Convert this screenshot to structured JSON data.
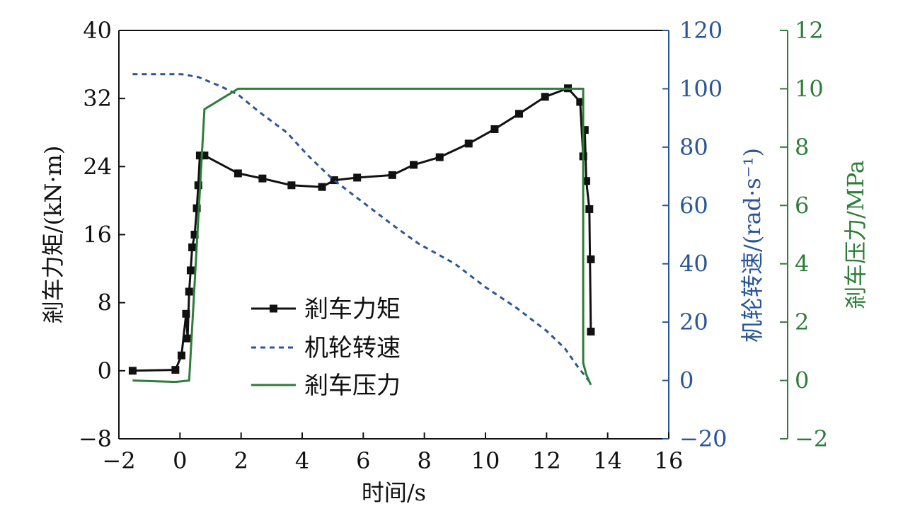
{
  "chart_data": {
    "type": "line",
    "xlabel": "时间/s",
    "xlim": [
      -2,
      16
    ],
    "xticks": [
      -2,
      0,
      2,
      4,
      6,
      8,
      10,
      12,
      14,
      16
    ],
    "axes": {
      "left": {
        "label": "剎车力矩/(kN·m)",
        "ylim": [
          -8,
          40
        ],
        "ticks": [
          -8,
          0,
          8,
          16,
          24,
          32,
          40
        ],
        "color": "#111111"
      },
      "right1": {
        "label": "机轮转速/(rad·s⁻¹)",
        "ylim": [
          -20,
          120
        ],
        "ticks": [
          -20,
          0,
          20,
          40,
          60,
          80,
          100,
          120
        ],
        "color": "#2a5699"
      },
      "right2": {
        "label": "剎车压力/MPa",
        "ylim": [
          -2,
          12
        ],
        "ticks": [
          -2,
          0,
          2,
          4,
          6,
          8,
          10,
          12
        ],
        "color": "#2e7d3a"
      }
    },
    "legend": {
      "placement": "center-left",
      "entries": [
        "剎车力矩",
        "机轮转速",
        "剎车压力"
      ]
    },
    "series": [
      {
        "name": "剎车力矩",
        "axis": "left",
        "style": "solid-square-markers",
        "color": "#111111",
        "x": [
          -1.55,
          -0.15,
          0.05,
          0.2,
          0.25,
          0.3,
          0.35,
          0.4,
          0.48,
          0.55,
          0.6,
          0.65,
          0.8,
          1.9,
          2.7,
          3.65,
          4.65,
          5.05,
          5.8,
          6.95,
          7.65,
          8.5,
          9.45,
          10.3,
          11.1,
          11.95,
          12.7,
          13.1,
          13.2,
          13.25,
          13.3,
          13.4,
          13.45
        ],
        "y": [
          0,
          0.1,
          1.8,
          6.7,
          3.8,
          9.3,
          11.8,
          14.5,
          16,
          19.1,
          21.8,
          25.3,
          25.3,
          23.2,
          22.6,
          21.8,
          21.6,
          22.4,
          22.7,
          23,
          24.2,
          25.1,
          26.7,
          28.4,
          30.2,
          32.2,
          33.2,
          31.6,
          25.2,
          28.3,
          22.3,
          19,
          4.6
        ],
        "extra_points": [
          {
            "x": 13.45,
            "y": 13.1
          }
        ]
      },
      {
        "name": "机轮转速",
        "axis": "right1",
        "style": "dashed",
        "color": "#2a5699",
        "x": [
          -1.55,
          0.05,
          0.6,
          1.3,
          1.9,
          2.6,
          3.5,
          4.2,
          5,
          6,
          7,
          7.8,
          9,
          10,
          11,
          12,
          12.6,
          13,
          13.3,
          13.45
        ],
        "y": [
          105,
          105,
          104,
          101,
          98,
          92,
          85,
          77,
          69,
          61,
          53,
          47,
          40,
          32,
          25,
          17,
          11,
          5,
          1,
          -1
        ]
      },
      {
        "name": "剎车压力",
        "axis": "right2",
        "style": "solid",
        "color": "#2e7d3a",
        "x": [
          -1.55,
          -0.15,
          0.3,
          0.8,
          1.9,
          13.2,
          13.2,
          13.3,
          13.45
        ],
        "y": [
          0,
          -0.05,
          0,
          9.3,
          10,
          10,
          0.6,
          0.2,
          -0.15
        ]
      }
    ]
  }
}
